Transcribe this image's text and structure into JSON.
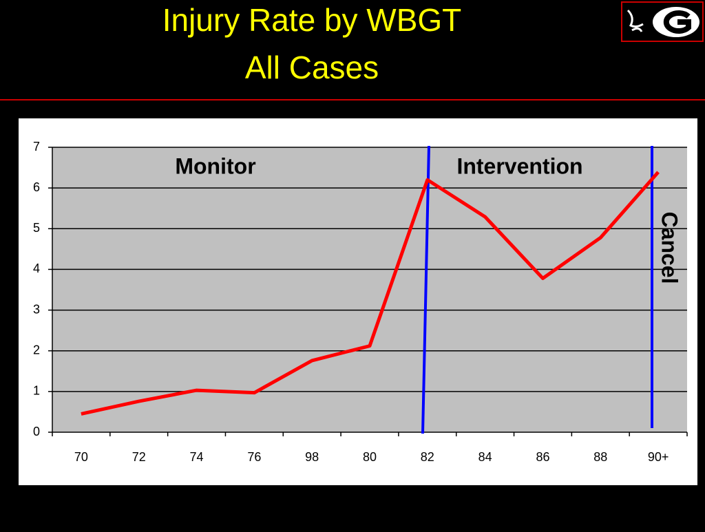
{
  "chart_data": {
    "type": "line",
    "title": [
      "Injury Rate by WBGT",
      "All Cases"
    ],
    "categories": [
      "70",
      "72",
      "74",
      "76",
      "98",
      "80",
      "82",
      "84",
      "86",
      "88",
      "90+"
    ],
    "series": [
      {
        "color": "#ff0000",
        "values": [
          0.45,
          0.76,
          1.03,
          0.97,
          1.76,
          2.12,
          6.2,
          5.29,
          3.78,
          4.78,
          6.39
        ]
      }
    ],
    "ylim": [
      0,
      7
    ],
    "yticks": [
      0,
      1,
      2,
      3,
      4,
      5,
      6,
      7
    ],
    "grid": true,
    "annotations": [
      "Monitor",
      "Intervention",
      "Cancel"
    ]
  }
}
